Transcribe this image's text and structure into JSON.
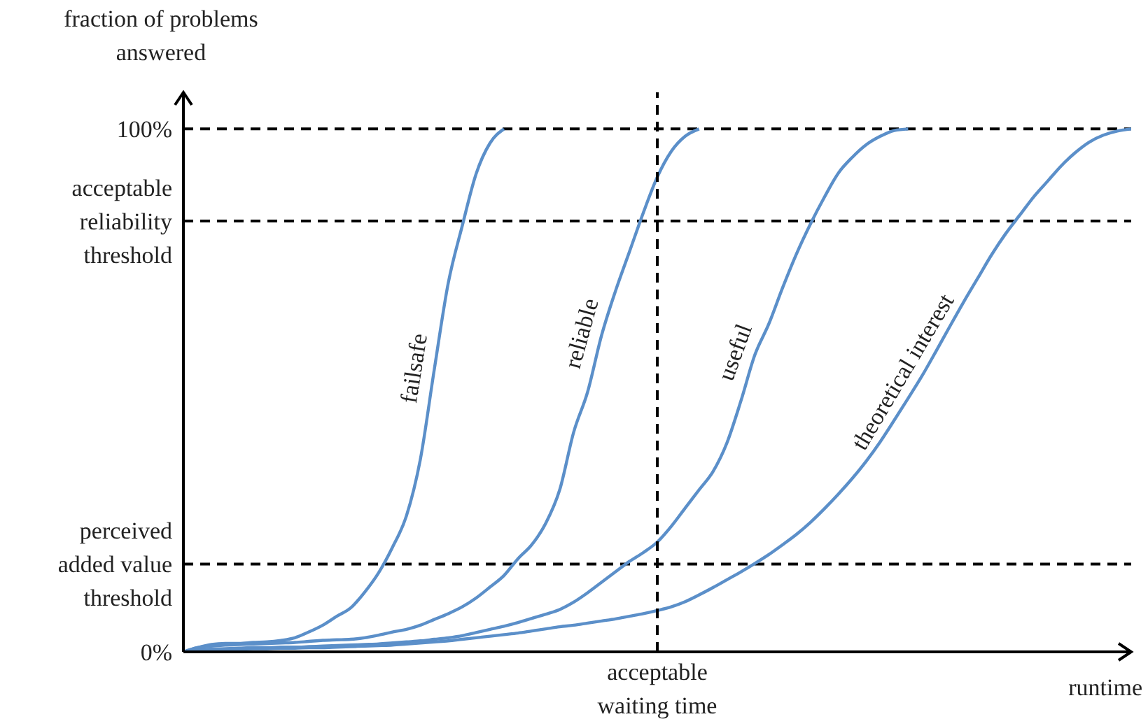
{
  "chart_data": {
    "type": "line",
    "ylabel": "fraction of problems answered",
    "xlabel": "runtime",
    "categories": [
      null,
      null,
      null,
      null,
      null,
      null,
      null,
      null,
      null,
      null,
      null,
      null,
      null,
      null,
      null,
      null,
      null,
      null,
      null,
      null,
      null,
      null,
      null,
      null,
      null,
      null,
      null,
      null,
      null,
      null,
      null,
      null,
      null,
      null,
      null,
      null,
      null,
      null,
      null,
      null,
      null,
      null,
      null,
      null,
      null,
      null,
      null,
      null,
      null,
      null,
      null,
      null,
      null,
      null,
      null,
      null,
      null,
      null,
      null,
      null,
      null,
      null,
      null,
      null,
      null,
      null,
      null,
      null,
      null
    ],
    "series": [
      {
        "name": "failsafe",
        "color": "#5b8fc9",
        "values": [
          0,
          0.8,
          1.4,
          1.6,
          1.6,
          1.8,
          1.9,
          2.2,
          2.7,
          3.8,
          5.1,
          6.8,
          8.4,
          11.4,
          15.1,
          20,
          26,
          36.8,
          54,
          70.5,
          81.4,
          91.4,
          97.3,
          100,
          null,
          null,
          null,
          null,
          null,
          null,
          null,
          null,
          null,
          null,
          null,
          null,
          null,
          null,
          null,
          null,
          null,
          null,
          null,
          null,
          null,
          null,
          null,
          null,
          null,
          null,
          null,
          null,
          null,
          null,
          null,
          null,
          null,
          null,
          null,
          null,
          null,
          null,
          null,
          null,
          null,
          null,
          null,
          null,
          null
        ]
      },
      {
        "name": "reliable",
        "color": "#5b8fc9",
        "values": [
          0,
          0.8,
          1.1,
          1.3,
          1.4,
          1.5,
          1.6,
          1.7,
          1.8,
          2.0,
          2.2,
          2.3,
          2.4,
          2.7,
          3.2,
          3.8,
          4.3,
          5.1,
          6.2,
          7.3,
          8.6,
          10.3,
          12.4,
          14.6,
          17.8,
          20.5,
          24.6,
          31,
          42,
          49.7,
          60.5,
          69,
          76.5,
          84,
          90.8,
          95.7,
          98.6,
          100,
          null,
          null,
          null,
          null,
          null,
          null,
          null,
          null,
          null,
          null,
          null,
          null,
          null,
          null,
          null,
          null,
          null,
          null,
          null,
          null,
          null,
          null,
          null,
          null,
          null,
          null,
          null,
          null,
          null,
          null,
          null
        ]
      },
      {
        "name": "useful",
        "color": "#5b8fc9",
        "values": [
          0,
          0.4,
          0.5,
          0.6,
          0.7,
          0.8,
          0.8,
          0.9,
          0.9,
          1.0,
          1.1,
          1.2,
          1.3,
          1.4,
          1.5,
          1.7,
          1.9,
          2.1,
          2.4,
          2.7,
          3.1,
          3.7,
          4.3,
          4.9,
          5.6,
          6.4,
          7.2,
          8.1,
          9.5,
          11.3,
          13.3,
          15.3,
          17.3,
          19,
          21,
          24,
          27.5,
          31,
          34.5,
          40,
          48,
          56.8,
          62.7,
          69.7,
          76.2,
          81.9,
          87,
          91.6,
          94.6,
          97,
          98.6,
          99.7,
          100,
          null,
          null,
          null,
          null,
          null,
          null,
          null,
          null,
          null,
          null,
          null,
          null,
          null,
          null,
          null,
          null
        ]
      },
      {
        "name": "theoretical interest",
        "color": "#5b8fc9",
        "values": [
          0,
          0.3,
          0.4,
          0.5,
          0.5,
          0.6,
          0.6,
          0.7,
          0.7,
          0.8,
          0.8,
          0.9,
          1.0,
          1.1,
          1.2,
          1.3,
          1.5,
          1.7,
          1.9,
          2.1,
          2.4,
          2.7,
          3.0,
          3.3,
          3.6,
          4.0,
          4.4,
          4.8,
          5.1,
          5.5,
          5.9,
          6.3,
          6.8,
          7.3,
          7.9,
          8.6,
          9.6,
          10.9,
          12.3,
          13.8,
          15.3,
          16.9,
          18.6,
          20.5,
          22.5,
          24.8,
          27.4,
          30.2,
          33.2,
          36.5,
          40.2,
          44.3,
          48.5,
          52.8,
          57.5,
          62.3,
          67,
          71.5,
          76,
          80,
          83.5,
          87,
          90,
          93,
          95.5,
          97.5,
          98.8,
          99.6,
          100
        ]
      }
    ],
    "ylim": [
      0,
      107
    ],
    "yticks": [
      {
        "value": 0,
        "label": "0%"
      },
      {
        "value": 16.8,
        "label": "perceived added value threshold"
      },
      {
        "value": 82.4,
        "label": "acceptable reliability threshold"
      },
      {
        "value": 100,
        "label": "100%"
      }
    ],
    "ref_lines": [
      {
        "axis": "y",
        "value": 100,
        "color": "#000000",
        "line_style": "dashed"
      },
      {
        "axis": "y",
        "value": 82.4,
        "color": "#000000",
        "line_style": "dashed"
      },
      {
        "axis": "y",
        "value": 16.8,
        "color": "#000000",
        "line_style": "dashed"
      }
    ],
    "annotations": [
      "acceptable waiting time"
    ],
    "tick_labels": "y",
    "grid": false,
    "legend": false,
    "marker": "none",
    "line_style": "solid"
  }
}
